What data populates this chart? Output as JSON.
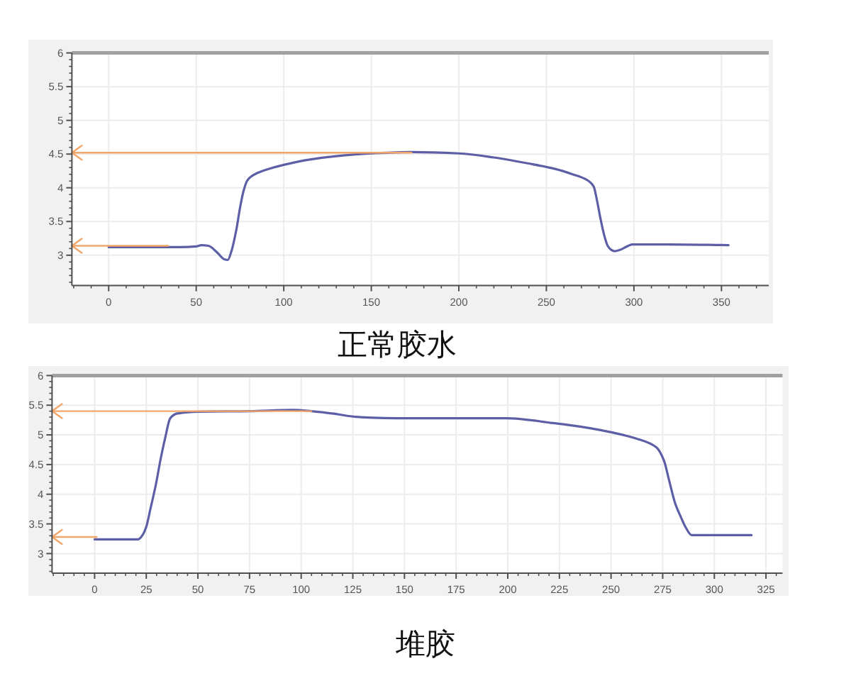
{
  "chart_data": [
    {
      "type": "line",
      "title": "正常胶水",
      "xlim": [
        -21,
        377
      ],
      "ylim": [
        2.55,
        6
      ],
      "xticks": [
        0,
        50,
        100,
        150,
        200,
        250,
        300,
        350
      ],
      "yticks": [
        3,
        3.5,
        4,
        4.5,
        5,
        5.5,
        6
      ],
      "grid": true,
      "x": [
        0,
        20,
        40,
        50,
        53,
        57,
        62,
        66,
        68,
        70,
        73,
        75,
        77,
        79,
        81,
        85,
        89,
        100,
        115,
        130,
        150,
        173,
        200,
        220,
        240,
        255,
        265,
        273,
        277,
        279,
        281,
        283,
        285,
        287,
        289,
        292,
        296,
        299,
        320,
        354
      ],
      "series": [
        {
          "color": "#5d5fa6",
          "values": [
            3.12,
            3.12,
            3.12,
            3.13,
            3.15,
            3.14,
            3.04,
            2.94,
            2.93,
            3.05,
            3.39,
            3.7,
            3.95,
            4.1,
            4.16,
            4.22,
            4.26,
            4.34,
            4.42,
            4.47,
            4.51,
            4.53,
            4.51,
            4.45,
            4.36,
            4.28,
            4.2,
            4.12,
            4.02,
            3.8,
            3.53,
            3.3,
            3.14,
            3.08,
            3.06,
            3.08,
            3.13,
            3.16,
            3.16,
            3.15
          ]
        },
        {
          "type": "line",
          "color": "#f2a66a",
          "x": [
            -21,
            173
          ],
          "values": [
            4.52,
            4.52
          ]
        },
        {
          "type": "line",
          "color": "#f2a66a",
          "x": [
            -21,
            34
          ],
          "values": [
            3.14,
            3.14
          ]
        }
      ]
    },
    {
      "type": "line",
      "title": "堆胶",
      "xlim": [
        -20.6,
        333
      ],
      "ylim": [
        2.67,
        6
      ],
      "xticks": [
        0,
        25,
        50,
        75,
        100,
        125,
        150,
        175,
        200,
        225,
        250,
        275,
        300,
        325
      ],
      "yticks": [
        3,
        3.5,
        4,
        4.5,
        5,
        5.5,
        6
      ],
      "grid": true,
      "x": [
        0,
        10,
        21,
        23,
        25,
        27,
        29.7,
        32,
        34.3,
        36.6,
        40,
        50,
        75,
        96,
        105,
        115,
        128,
        151,
        175,
        199,
        222,
        235,
        245,
        263,
        272,
        275.6,
        278,
        281,
        284,
        286,
        289,
        295,
        318
      ],
      "series": [
        {
          "color": "#5d5fa6",
          "values": [
            3.24,
            3.24,
            3.24,
            3.3,
            3.45,
            3.75,
            4.17,
            4.6,
            4.97,
            5.28,
            5.36,
            5.39,
            5.4,
            5.42,
            5.4,
            5.36,
            5.3,
            5.28,
            5.28,
            5.28,
            5.2,
            5.14,
            5.08,
            4.93,
            4.79,
            4.57,
            4.25,
            3.85,
            3.6,
            3.45,
            3.31,
            3.31,
            3.31
          ]
        },
        {
          "type": "line",
          "color": "#f2a66a",
          "x": [
            -20.6,
            105
          ],
          "values": [
            5.4,
            5.4
          ]
        },
        {
          "type": "line",
          "color": "#f2a66a",
          "x": [
            -20.6,
            1
          ],
          "values": [
            3.28,
            3.28
          ]
        }
      ]
    }
  ]
}
